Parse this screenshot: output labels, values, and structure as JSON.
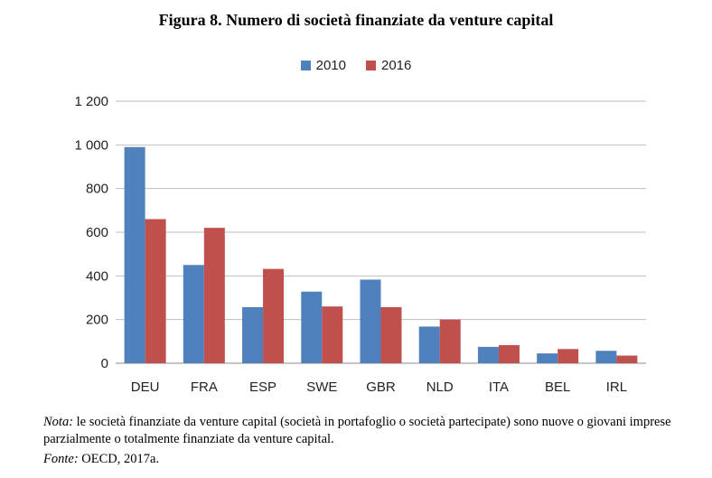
{
  "figure": {
    "title": "Figura 8. Numero di società finanziate da venture capital",
    "note_label": "Nota:",
    "note_text": " le società finanziate da venture capital (società in portafoglio o società partecipate) sono nuove o giovani imprese parzialmente o totalmente finanziate da venture capital.",
    "source_label": "Fonte:",
    "source_text": " OECD, 2017a."
  },
  "chart_data": {
    "type": "bar",
    "title": "Figura 8. Numero di società finanziate da venture capital",
    "xlabel": "",
    "ylabel": "",
    "categories": [
      "DEU",
      "FRA",
      "ESP",
      "SWE",
      "GBR",
      "NLD",
      "ITA",
      "BEL",
      "IRL"
    ],
    "series": [
      {
        "name": "2010",
        "color": "#4F81BD",
        "values": [
          990,
          450,
          257,
          328,
          383,
          168,
          75,
          45,
          57
        ]
      },
      {
        "name": "2016",
        "color": "#C0504D",
        "values": [
          660,
          620,
          432,
          260,
          257,
          200,
          83,
          65,
          35
        ]
      }
    ],
    "ylim": [
      0,
      1200
    ],
    "yticks": [
      0,
      200,
      400,
      600,
      800,
      1000,
      1200
    ],
    "ytick_labels": [
      "0",
      "200",
      "400",
      "600",
      "800",
      "1 000",
      "1 200"
    ],
    "grid": true,
    "legend_position": "top-center"
  }
}
